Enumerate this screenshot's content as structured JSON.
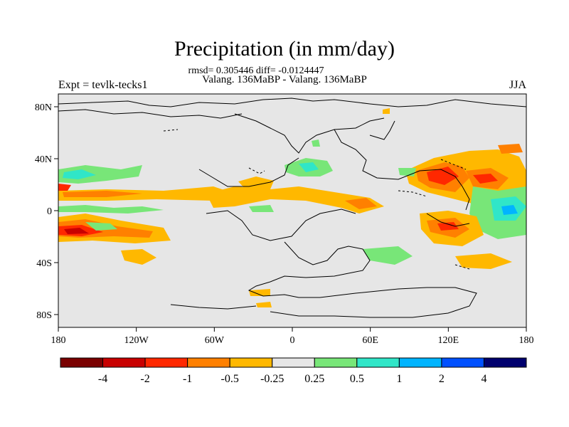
{
  "header": {
    "title": "Precipitation (in mm/day)",
    "stats": "rmsd= 0.305446 diff= -0.0124447",
    "comparison": "Valang. 136MaBP - Valang. 136MaBP",
    "experiment": "Expt = tevlk-tecks1",
    "season": "JJA"
  },
  "axes": {
    "y_ticks": [
      "80N",
      "40N",
      "0",
      "40S",
      "80S"
    ],
    "x_ticks": [
      "180",
      "120W",
      "60W",
      "0",
      "60E",
      "120E",
      "180"
    ]
  },
  "colorbar": {
    "labels": [
      "-4",
      "-2",
      "-1",
      "-0.5",
      "-0.25",
      "0.25",
      "0.5",
      "1",
      "2",
      "4"
    ],
    "colors": [
      "#7a0000",
      "#c80000",
      "#ff2800",
      "#ff8000",
      "#ffb800",
      "#e6e6e6",
      "#78e678",
      "#30e6c8",
      "#00b4ff",
      "#0050ff",
      "#00006e"
    ]
  },
  "chart_data": {
    "type": "heatmap",
    "title": "Precipitation (in mm/day)",
    "subtitle": "Valang. 136MaBP - Valang. 136MaBP",
    "units": "mm/day",
    "xlim": [
      -180,
      180
    ],
    "ylim": [
      -90,
      90
    ],
    "levels": [
      -4,
      -2,
      -1,
      -0.5,
      -0.25,
      0.25,
      0.5,
      1,
      2,
      4
    ],
    "colors": [
      "#7a0000",
      "#c80000",
      "#ff2800",
      "#ff8000",
      "#ffb800",
      "#e6e6e6",
      "#78e678",
      "#30e6c8",
      "#00b4ff",
      "#0050ff",
      "#00006e"
    ]
  }
}
